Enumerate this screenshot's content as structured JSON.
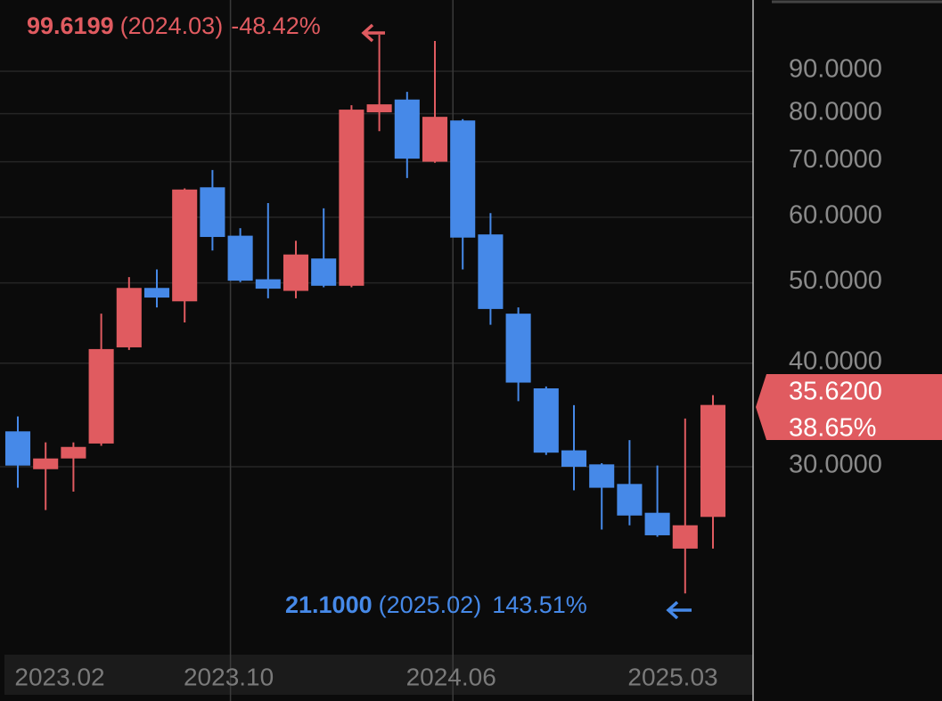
{
  "chart_data": {
    "type": "candlestick",
    "categories": [
      "2023.02",
      null,
      null,
      null,
      null,
      null,
      null,
      null,
      "2023.10",
      null,
      null,
      null,
      null,
      null,
      null,
      null,
      "2024.06",
      null,
      null,
      null,
      null,
      null,
      null,
      null,
      null,
      "2025.03"
    ],
    "open": [
      33.1,
      29.8,
      30.7,
      32.0,
      41.8,
      49.3,
      47.5,
      65.2,
      57.0,
      50.5,
      48.9,
      53.5,
      49.6,
      80.3,
      83.2,
      70.0,
      78.5,
      57.2,
      45.9,
      37.3,
      31.4,
      30.2,
      28.6,
      26.4,
      23.9,
      26.1
    ],
    "high": [
      34.5,
      32.1,
      32.1,
      45.9,
      50.8,
      51.9,
      65.0,
      68.4,
      58.2,
      62.4,
      56.2,
      61.5,
      81.9,
      99.6199,
      85.0,
      97.9,
      78.8,
      60.7,
      46.7,
      37.5,
      35.6,
      30.3,
      32.3,
      30.1,
      34.3,
      36.6
    ],
    "low": [
      28.3,
      26.6,
      28.0,
      31.8,
      41.5,
      46.7,
      44.8,
      54.7,
      50.1,
      47.9,
      47.9,
      49.4,
      49.4,
      76.2,
      66.9,
      69.8,
      51.9,
      44.5,
      36.0,
      31.0,
      28.1,
      25.2,
      25.5,
      24.7,
      21.1,
      23.9
    ],
    "close": [
      30.1,
      30.7,
      31.7,
      41.6,
      49.3,
      48.0,
      64.8,
      56.8,
      50.3,
      49.2,
      54.1,
      49.6,
      80.9,
      82.1,
      70.6,
      79.3,
      56.7,
      46.5,
      37.9,
      31.2,
      30.0,
      28.3,
      26.2,
      24.8,
      25.5,
      35.62
    ],
    "up_color": "#e05b60",
    "down_color": "#4689e8",
    "log_scale": true,
    "ylim": [
      17.8,
      109.7
    ],
    "yticks": [
      {
        "value": 30,
        "label": "30.0000"
      },
      {
        "value": 40,
        "label": "40.0000"
      },
      {
        "value": 50,
        "label": "50.0000"
      },
      {
        "value": 60,
        "label": "60.0000"
      },
      {
        "value": 70,
        "label": "70.0000"
      },
      {
        "value": 80,
        "label": "80.0000"
      },
      {
        "value": 90,
        "label": "90.0000"
      }
    ],
    "grid": true,
    "annotations": {
      "high": {
        "price": "99.6199",
        "date": "(2024.03)",
        "change": "-48.42%"
      },
      "low": {
        "price": "21.1000",
        "date": "(2025.02)",
        "change": "143.51%"
      },
      "last": {
        "price": "35.6200",
        "change": "38.65%"
      }
    }
  }
}
